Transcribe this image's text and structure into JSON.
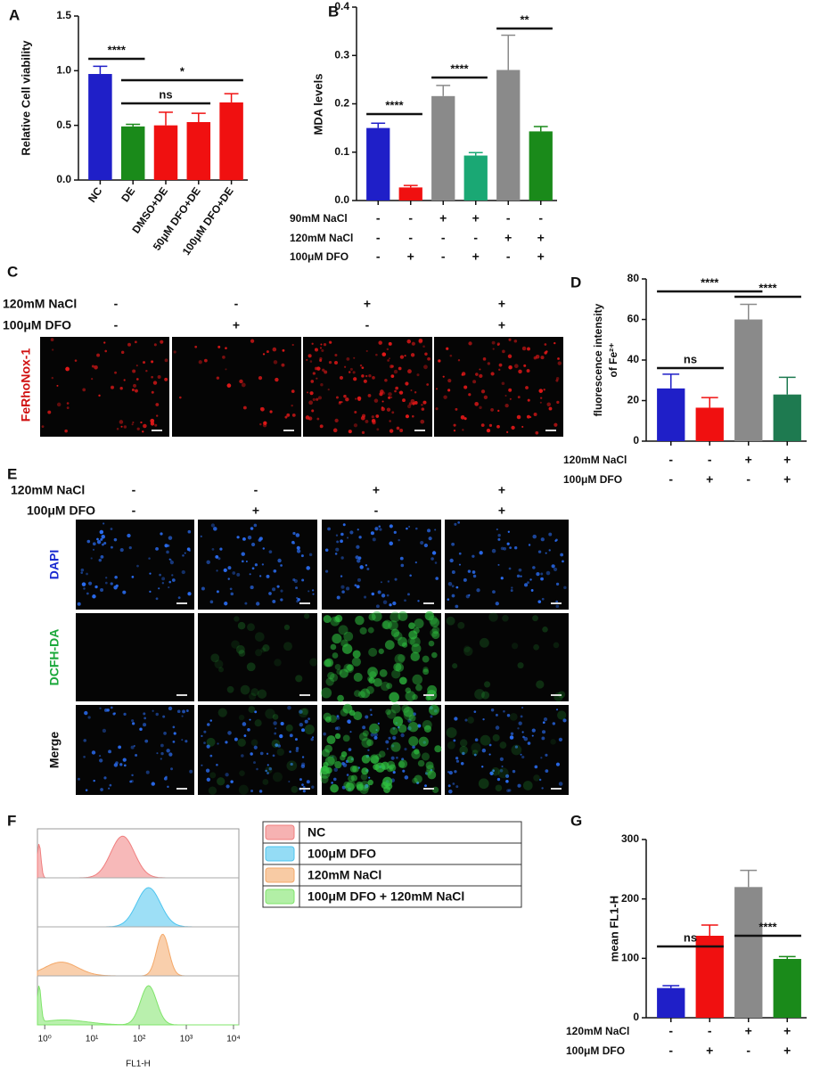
{
  "panels": [
    "A",
    "B",
    "C",
    "D",
    "E",
    "F",
    "G"
  ],
  "panel_c": {
    "conditions": [
      {
        "name": "120mM NaCl",
        "marks": [
          "-",
          "-",
          "+",
          "+"
        ]
      },
      {
        "name": "100μM DFO",
        "marks": [
          "-",
          "+",
          "-",
          "+"
        ]
      }
    ],
    "stain": "FeRhoNox-1"
  },
  "panel_e": {
    "conditions": [
      {
        "name": "120mM NaCl",
        "marks": [
          "-",
          "-",
          "+",
          "+"
        ]
      },
      {
        "name": "100μM DFO",
        "marks": [
          "-",
          "+",
          "-",
          "+"
        ]
      }
    ],
    "stains": [
      "DAPI",
      "DCFH-DA",
      "Merge"
    ]
  },
  "chart_data": [
    {
      "type": "bar",
      "ylabel": "Relative Cell viability",
      "categories": [
        "NC",
        "DE",
        "DMSO+DE",
        "50μM DFO+DE",
        "100μM DFO+DE"
      ],
      "values": [
        0.97,
        0.49,
        0.5,
        0.53,
        0.71
      ],
      "errors": [
        0.07,
        0.02,
        0.12,
        0.08,
        0.08
      ],
      "colors": [
        "#1f1fc8",
        "#1a8a1a",
        "#f01010",
        "#f01010",
        "#f01010"
      ],
      "ylim": [
        0,
        1.5
      ],
      "yticks": [
        {
          "value": 0,
          "label": "0.0"
        },
        {
          "value": 0.5,
          "label": "0.5"
        },
        {
          "value": 1,
          "label": "1.0"
        },
        1.5
      ],
      "annotations": [
        "****",
        "ns",
        "*"
      ]
    },
    {
      "type": "bar",
      "ylabel": "MDA levels",
      "values": [
        0.15,
        0.027,
        0.216,
        0.093,
        0.27,
        0.143
      ],
      "errors": [
        0.01,
        0.004,
        0.022,
        0.006,
        0.072,
        0.01
      ],
      "colors": [
        "#1f1fc8",
        "#f01010",
        "#8a8a8a",
        "#1aa874",
        "#8a8a8a",
        "#1a8a1a"
      ],
      "ylim": [
        0,
        0.4
      ],
      "yticks": [
        {
          "value": 0,
          "label": "0.0"
        },
        0.1,
        0.2,
        0.3,
        0.4
      ],
      "conditions": [
        {
          "name": "90mM NaCl",
          "marks": [
            "-",
            "-",
            "+",
            "+",
            "-",
            "-"
          ]
        },
        {
          "name": "120mM NaCl",
          "marks": [
            "-",
            "-",
            "-",
            "-",
            "+",
            "+"
          ]
        },
        {
          "name": "100μM DFO",
          "marks": [
            "-",
            "+",
            "-",
            "+",
            "-",
            "+"
          ]
        }
      ],
      "annotations": [
        "****",
        "****",
        "**"
      ]
    },
    {
      "type": "bar",
      "ylabel": [
        "fluorescence intensity",
        "of Fe²⁺"
      ],
      "values": [
        26,
        16.5,
        60,
        23
      ],
      "errors": [
        7,
        5,
        7.5,
        8.5
      ],
      "colors": [
        "#1f1fc8",
        "#f01010",
        "#8a8a8a",
        "#1e7a50"
      ],
      "ylim": [
        0,
        80
      ],
      "yticks": [
        0,
        20,
        40,
        60,
        80
      ],
      "conditions": [
        {
          "name": "120mM NaCl",
          "marks": [
            "-",
            "-",
            "+",
            "+"
          ]
        },
        {
          "name": "100μM DFO",
          "marks": [
            "-",
            "+",
            "-",
            "+"
          ]
        }
      ],
      "annotations": [
        "ns",
        "****",
        "****"
      ]
    },
    {
      "type": "bar",
      "ylabel": "mean FL1-H",
      "values": [
        50,
        138,
        220,
        99
      ],
      "errors": [
        4,
        18,
        28,
        4
      ],
      "colors": [
        "#1f1fc8",
        "#f01010",
        "#8a8a8a",
        "#1a8a1a"
      ],
      "ylim": [
        0,
        300
      ],
      "yticks": [
        0,
        100,
        200,
        300
      ],
      "conditions": [
        {
          "name": "120mM NaCl",
          "marks": [
            "-",
            "-",
            "+",
            "+"
          ]
        },
        {
          "name": "100μM DFO",
          "marks": [
            "-",
            "+",
            "-",
            "+"
          ]
        }
      ],
      "annotations": [
        "ns",
        "****"
      ]
    },
    {
      "type": "flow",
      "xlabel": "FL1-H",
      "xscale": "log",
      "xlim": [
        0.7,
        13000
      ],
      "xticks": [
        {
          "value": 1,
          "label": "10⁰"
        },
        {
          "value": 10,
          "label": "10¹"
        },
        {
          "value": 100,
          "label": "10²"
        },
        {
          "value": 1000,
          "label": "10³"
        },
        {
          "value": 10000,
          "label": "10⁴"
        }
      ],
      "series": [
        {
          "name": "NC",
          "color": "#f07f7f"
        },
        {
          "name": "100μM DFO",
          "color": "#4cc4ef"
        },
        {
          "name": "120mM NaCl",
          "color": "#f4a868"
        },
        {
          "name": "100μM DFO + 120mM NaCl",
          "color": "#7fe46a"
        }
      ]
    }
  ]
}
